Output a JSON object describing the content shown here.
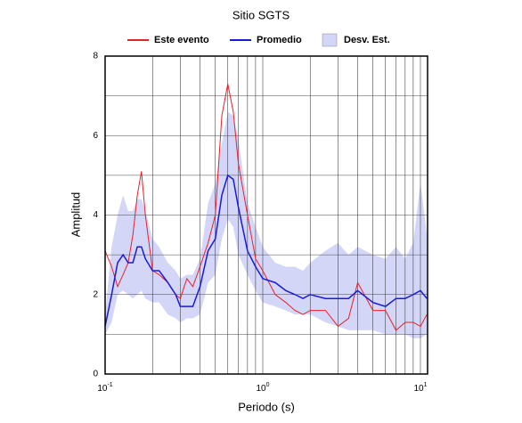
{
  "chart_data": {
    "type": "line",
    "title": "Sitio SGTS",
    "x_label": "Periodo (s)",
    "y_label": "Amplitud",
    "xscale": "log",
    "grid": true,
    "legend": "top",
    "xlim": [
      0.1,
      11.1
    ],
    "ylim": [
      0,
      8
    ],
    "xticks": [
      {
        "value": 0.1,
        "label": "10",
        "exponent": "-1"
      },
      {
        "value": 1,
        "label": "10",
        "exponent": "0"
      },
      {
        "value": 10,
        "label": "10",
        "exponent": "1"
      }
    ],
    "xgrid": [
      0.2,
      0.3,
      0.4,
      0.5,
      0.6,
      0.7,
      0.8,
      0.9,
      2,
      3,
      4,
      5,
      6,
      7,
      8,
      9
    ],
    "yticks": [
      0,
      2,
      4,
      6,
      8
    ],
    "ygrid": [
      1,
      3,
      5,
      7
    ],
    "x": [
      0.1,
      0.11,
      0.12,
      0.13,
      0.14,
      0.15,
      0.16,
      0.17,
      0.18,
      0.2,
      0.22,
      0.25,
      0.28,
      0.3,
      0.33,
      0.36,
      0.4,
      0.45,
      0.5,
      0.55,
      0.6,
      0.65,
      0.7,
      0.8,
      0.9,
      1.0,
      1.2,
      1.4,
      1.6,
      1.8,
      2.0,
      2.5,
      3.0,
      3.5,
      4.0,
      5.0,
      6.0,
      7.0,
      8.0,
      9.0,
      10.0,
      11.0
    ],
    "series": [
      {
        "name": "Este evento",
        "color": "#e8202a",
        "values": [
          3.1,
          2.7,
          2.2,
          2.5,
          2.8,
          3.5,
          4.5,
          5.1,
          4.0,
          2.6,
          2.5,
          2.3,
          2.0,
          1.9,
          2.4,
          2.2,
          2.7,
          3.3,
          4.0,
          6.5,
          7.3,
          6.6,
          5.3,
          4.0,
          2.9,
          2.6,
          2.0,
          1.8,
          1.6,
          1.5,
          1.6,
          1.6,
          1.2,
          1.4,
          2.3,
          1.6,
          1.6,
          1.1,
          1.3,
          1.3,
          1.2,
          1.5
        ]
      },
      {
        "name": "Promedio",
        "color": "#1a1adb",
        "values": [
          1.2,
          2.0,
          2.8,
          3.0,
          2.8,
          2.8,
          3.2,
          3.2,
          2.9,
          2.6,
          2.6,
          2.3,
          2.0,
          1.7,
          1.7,
          1.7,
          2.2,
          3.1,
          3.4,
          4.5,
          5.0,
          4.9,
          4.2,
          3.1,
          2.7,
          2.4,
          2.3,
          2.1,
          2.0,
          1.9,
          2.0,
          1.9,
          1.9,
          1.9,
          2.1,
          1.8,
          1.7,
          1.9,
          1.9,
          2.0,
          2.1,
          1.9
        ]
      },
      {
        "name": "Desv. Est.",
        "color": "#d4d6f7",
        "upper": [
          1.5,
          3.2,
          4.0,
          4.5,
          4.1,
          4.1,
          4.4,
          4.4,
          4.1,
          3.4,
          3.2,
          2.8,
          2.6,
          2.4,
          2.5,
          2.5,
          2.9,
          4.3,
          4.8,
          5.8,
          6.6,
          6.5,
          5.9,
          4.3,
          3.7,
          3.2,
          2.8,
          2.7,
          2.7,
          2.6,
          2.8,
          3.1,
          3.3,
          3.0,
          3.2,
          3.0,
          2.9,
          3.2,
          2.9,
          3.3,
          4.8,
          3.5
        ],
        "lower": [
          1.0,
          1.3,
          2.0,
          2.1,
          2.0,
          1.9,
          2.0,
          2.1,
          1.9,
          1.8,
          1.8,
          1.5,
          1.4,
          1.3,
          1.4,
          1.4,
          1.5,
          2.3,
          2.5,
          3.4,
          3.9,
          3.7,
          3.0,
          2.5,
          2.1,
          1.8,
          1.7,
          1.6,
          1.5,
          1.5,
          1.5,
          1.3,
          1.2,
          1.1,
          1.1,
          1.1,
          1.0,
          1.0,
          1.0,
          0.9,
          0.9,
          1.0
        ]
      }
    ]
  }
}
